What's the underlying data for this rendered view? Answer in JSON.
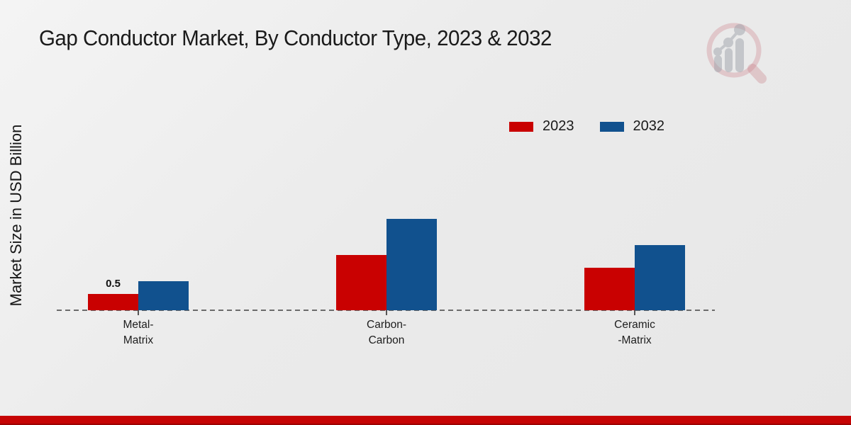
{
  "title": "Gap Conductor Market, By Conductor Type, 2023 & 2032",
  "y_axis_label": "Market Size in USD Billion",
  "logo": {
    "name": "market-research-future-watermark"
  },
  "footer": {
    "accent_color": "#c60404"
  },
  "chart_data": {
    "type": "bar",
    "title": "Gap Conductor Market, By Conductor Type, 2023 & 2032",
    "xlabel": "",
    "ylabel": "Market Size in USD Billion",
    "categories": [
      "Metal-\nMatrix",
      "Carbon-\nCarbon",
      "Ceramic\n-Matrix"
    ],
    "series": [
      {
        "name": "2023",
        "color": "#c90101",
        "values": [
          0.5,
          1.7,
          1.3
        ]
      },
      {
        "name": "2032",
        "color": "#11518e",
        "values": [
          0.9,
          2.8,
          2.0
        ]
      }
    ],
    "annotations": [
      {
        "series": "2023",
        "category_index": 0,
        "text": "0.5"
      }
    ],
    "axis": {
      "baseline_style": "dashed",
      "ylim": [
        0,
        3
      ],
      "gridlines": false,
      "y_ticks_shown": false
    },
    "legend_position": "top-right"
  }
}
